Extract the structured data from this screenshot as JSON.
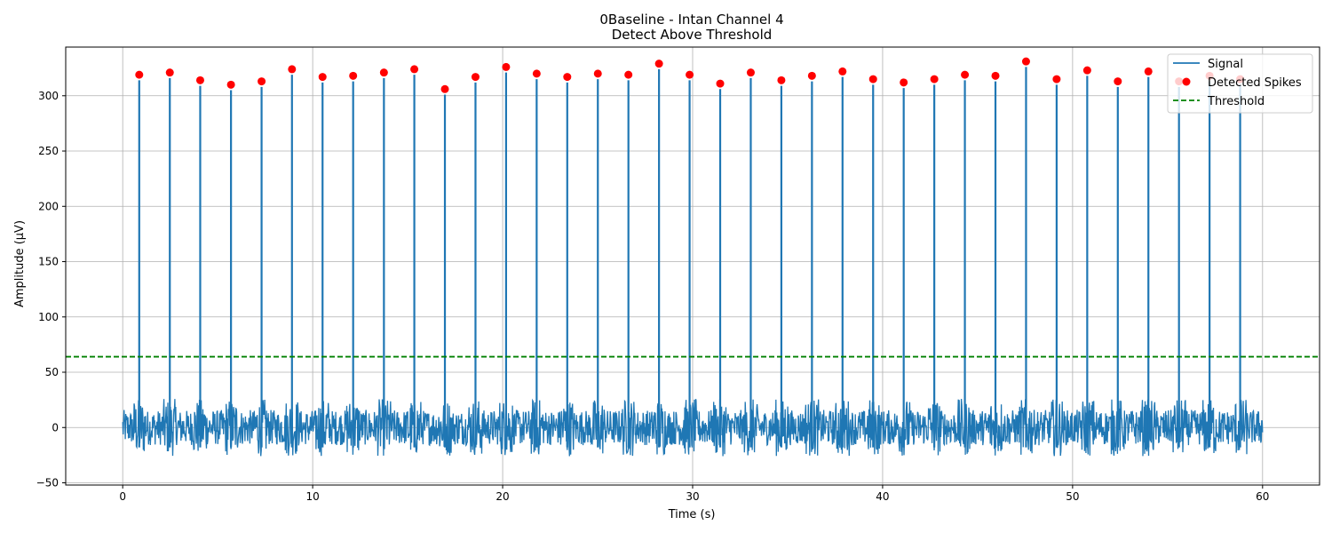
{
  "chart_data": {
    "type": "line",
    "title": "0Baseline - Intan Channel 4",
    "subtitle": "Detect Above Threshold",
    "xlabel": "Time (s)",
    "ylabel": "Amplitude (µV)",
    "xlim": [
      -3,
      63
    ],
    "ylim": [
      -52,
      344
    ],
    "xticks": [
      0,
      10,
      20,
      30,
      40,
      50,
      60
    ],
    "yticks": [
      -50,
      0,
      50,
      100,
      150,
      200,
      250,
      300
    ],
    "grid": true,
    "legend_position": "top-right",
    "threshold": 64,
    "noise": {
      "range": [
        0,
        60
      ],
      "amplitude_range": [
        -33,
        40
      ]
    },
    "spikes": [
      {
        "t": 0.87,
        "amp": 319
      },
      {
        "t": 2.48,
        "amp": 321
      },
      {
        "t": 4.08,
        "amp": 314
      },
      {
        "t": 5.7,
        "amp": 310
      },
      {
        "t": 7.31,
        "amp": 313
      },
      {
        "t": 8.91,
        "amp": 324
      },
      {
        "t": 10.52,
        "amp": 317
      },
      {
        "t": 12.13,
        "amp": 318
      },
      {
        "t": 13.75,
        "amp": 321
      },
      {
        "t": 15.35,
        "amp": 324
      },
      {
        "t": 16.96,
        "amp": 306
      },
      {
        "t": 18.57,
        "amp": 317
      },
      {
        "t": 20.18,
        "amp": 326
      },
      {
        "t": 21.79,
        "amp": 320
      },
      {
        "t": 23.4,
        "amp": 317
      },
      {
        "t": 25.01,
        "amp": 320
      },
      {
        "t": 26.62,
        "amp": 319
      },
      {
        "t": 28.23,
        "amp": 329
      },
      {
        "t": 29.84,
        "amp": 319
      },
      {
        "t": 31.45,
        "amp": 311
      },
      {
        "t": 33.06,
        "amp": 321
      },
      {
        "t": 34.67,
        "amp": 314
      },
      {
        "t": 36.28,
        "amp": 318
      },
      {
        "t": 37.89,
        "amp": 322
      },
      {
        "t": 39.5,
        "amp": 315
      },
      {
        "t": 41.11,
        "amp": 312
      },
      {
        "t": 42.72,
        "amp": 315
      },
      {
        "t": 44.33,
        "amp": 319
      },
      {
        "t": 45.94,
        "amp": 318
      },
      {
        "t": 47.55,
        "amp": 331
      },
      {
        "t": 49.16,
        "amp": 315
      },
      {
        "t": 50.77,
        "amp": 323
      },
      {
        "t": 52.38,
        "amp": 313
      },
      {
        "t": 53.99,
        "amp": 322
      },
      {
        "t": 55.6,
        "amp": 313
      },
      {
        "t": 57.21,
        "amp": 318
      },
      {
        "t": 58.82,
        "amp": 315
      }
    ],
    "series": [
      {
        "name": "Signal",
        "color": "#1f77b4",
        "style": "line"
      },
      {
        "name": "Detected Spikes",
        "color": "#ff0000",
        "style": "marker"
      },
      {
        "name": "Threshold",
        "color": "#008000",
        "style": "dashed"
      }
    ]
  }
}
